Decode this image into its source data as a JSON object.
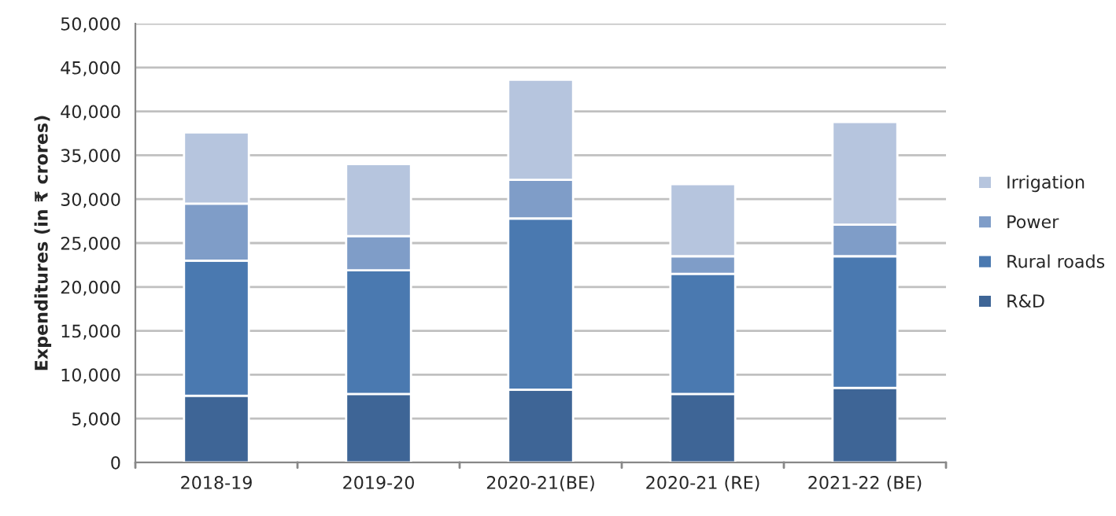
{
  "chart_data": {
    "type": "bar",
    "stacked": true,
    "ylabel": "Expenditures (in ₹ crores)",
    "categories": [
      "2018-19",
      "2019-20",
      "2020-21(BE)",
      "2020-21 (RE)",
      "2021-22 (BE)"
    ],
    "series": [
      {
        "name": "R&D",
        "color": "#3e6596",
        "values": [
          7600,
          7800,
          8300,
          7800,
          8500
        ]
      },
      {
        "name": "Rural roads",
        "color": "#4a79b0",
        "values": [
          15400,
          14100,
          19500,
          13700,
          15000
        ]
      },
      {
        "name": "Power",
        "color": "#7f9dc8",
        "values": [
          6500,
          3900,
          4400,
          2000,
          3600
        ]
      },
      {
        "name": "Irrigation",
        "color": "#b6c5de",
        "values": [
          8100,
          8200,
          11400,
          8200,
          11700
        ]
      }
    ],
    "ylim": [
      0,
      50000
    ],
    "yticks": [
      {
        "value": 0,
        "label": "0"
      },
      {
        "value": 5000,
        "label": "5,000"
      },
      {
        "value": 10000,
        "label": "10,000"
      },
      {
        "value": 15000,
        "label": "15,000"
      },
      {
        "value": 20000,
        "label": "20,000"
      },
      {
        "value": 25000,
        "label": "25,000"
      },
      {
        "value": 30000,
        "label": "30,000"
      },
      {
        "value": 35000,
        "label": "35,000"
      },
      {
        "value": 40000,
        "label": "40,000"
      },
      {
        "value": 45000,
        "label": "45,000"
      },
      {
        "value": 50000,
        "label": "50,000"
      }
    ],
    "grid": "y",
    "legend": "right"
  }
}
